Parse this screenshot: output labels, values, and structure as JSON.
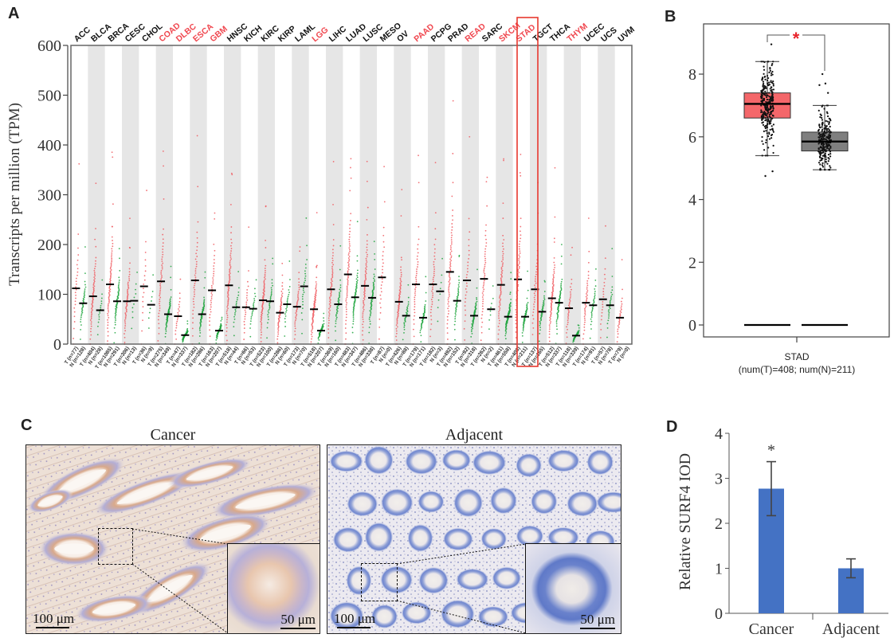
{
  "panels": {
    "A": {
      "letter": "A"
    },
    "B": {
      "letter": "B"
    },
    "C": {
      "letter": "C"
    },
    "D": {
      "letter": "D"
    }
  },
  "chart_data": [
    {
      "id": "A",
      "type": "scatter",
      "title": "",
      "ylabel": "Transcripts per million (TPM)",
      "xlabel": "",
      "ylim": [
        0,
        600
      ],
      "yticks": [
        0,
        100,
        200,
        300,
        400,
        500,
        600
      ],
      "tumor_color": "#f0595f",
      "normal_color": "#1aa33a",
      "highlight_color": "#e8382f",
      "highlighted_type": "STAD",
      "cancer_types": [
        {
          "name": "ACC",
          "significant": false,
          "T": {
            "n": 77,
            "median": 112
          },
          "N": {
            "n": 128,
            "median": 82
          }
        },
        {
          "name": "BLCA",
          "significant": false,
          "T": {
            "n": 404,
            "median": 96
          },
          "N": {
            "n": 28,
            "median": 68
          }
        },
        {
          "name": "BRCA",
          "significant": false,
          "T": {
            "n": 1085,
            "median": 120
          },
          "N": {
            "n": 291,
            "median": 86
          }
        },
        {
          "name": "CESC",
          "significant": false,
          "T": {
            "n": 306,
            "median": 86
          },
          "N": {
            "n": 13,
            "median": 87
          }
        },
        {
          "name": "CHOL",
          "significant": false,
          "T": {
            "n": 36,
            "median": 116
          },
          "N": {
            "n": 9,
            "median": 79
          }
        },
        {
          "name": "COAD",
          "significant": true,
          "T": {
            "n": 275,
            "median": 126
          },
          "N": {
            "n": 349,
            "median": 60
          }
        },
        {
          "name": "DLBC",
          "significant": true,
          "T": {
            "n": 47,
            "median": 56
          },
          "N": {
            "n": 337,
            "median": 18
          }
        },
        {
          "name": "ESCA",
          "significant": true,
          "T": {
            "n": 182,
            "median": 128
          },
          "N": {
            "n": 286,
            "median": 60
          }
        },
        {
          "name": "GBM",
          "significant": true,
          "T": {
            "n": 163,
            "median": 108
          },
          "N": {
            "n": 207,
            "median": 27
          }
        },
        {
          "name": "HNSC",
          "significant": false,
          "T": {
            "n": 518,
            "median": 118
          },
          "N": {
            "n": 44,
            "median": 74
          }
        },
        {
          "name": "KICH",
          "significant": false,
          "T": {
            "n": 66,
            "median": 74
          },
          "N": {
            "n": 53,
            "median": 71
          }
        },
        {
          "name": "KIRC",
          "significant": false,
          "T": {
            "n": 523,
            "median": 88
          },
          "N": {
            "n": 100,
            "median": 86
          }
        },
        {
          "name": "KIRP",
          "significant": false,
          "T": {
            "n": 286,
            "median": 63
          },
          "N": {
            "n": 60,
            "median": 80
          }
        },
        {
          "name": "LAML",
          "significant": false,
          "T": {
            "n": 173,
            "median": 75
          },
          "N": {
            "n": 70,
            "median": 116
          }
        },
        {
          "name": "LGG",
          "significant": true,
          "T": {
            "n": 518,
            "median": 70
          },
          "N": {
            "n": 207,
            "median": 27
          }
        },
        {
          "name": "LIHC",
          "significant": false,
          "T": {
            "n": 369,
            "median": 110
          },
          "N": {
            "n": 160,
            "median": 80
          }
        },
        {
          "name": "LUAD",
          "significant": false,
          "T": {
            "n": 483,
            "median": 140
          },
          "N": {
            "n": 347,
            "median": 94
          }
        },
        {
          "name": "LUSC",
          "significant": false,
          "T": {
            "n": 486,
            "median": 117
          },
          "N": {
            "n": 338,
            "median": 93
          }
        },
        {
          "name": "MESO",
          "significant": false,
          "T": {
            "n": 87,
            "median": 134
          },
          "N": {
            "n": 0,
            "median": null
          }
        },
        {
          "name": "OV",
          "significant": false,
          "T": {
            "n": 426,
            "median": 85
          },
          "N": {
            "n": 88,
            "median": 57
          }
        },
        {
          "name": "PAAD",
          "significant": true,
          "T": {
            "n": 179,
            "median": 120
          },
          "N": {
            "n": 171,
            "median": 53
          }
        },
        {
          "name": "PCPG",
          "significant": false,
          "T": {
            "n": 182,
            "median": 120
          },
          "N": {
            "n": 3,
            "median": 106
          }
        },
        {
          "name": "PRAD",
          "significant": false,
          "T": {
            "n": 492,
            "median": 145
          },
          "N": {
            "n": 152,
            "median": 87
          }
        },
        {
          "name": "READ",
          "significant": true,
          "T": {
            "n": 92,
            "median": 128
          },
          "N": {
            "n": 318,
            "median": 57
          }
        },
        {
          "name": "SARC",
          "significant": false,
          "T": {
            "n": 262,
            "median": 131
          },
          "N": {
            "n": 2,
            "median": 70
          }
        },
        {
          "name": "SKCM",
          "significant": true,
          "T": {
            "n": 461,
            "median": 119
          },
          "N": {
            "n": 558,
            "median": 55
          }
        },
        {
          "name": "STAD",
          "significant": true,
          "T": {
            "n": 408,
            "median": 130
          },
          "N": {
            "n": 211,
            "median": 55
          }
        },
        {
          "name": "TGCT",
          "significant": false,
          "T": {
            "n": 137,
            "median": 110
          },
          "N": {
            "n": 165,
            "median": 65
          }
        },
        {
          "name": "THCA",
          "significant": false,
          "T": {
            "n": 512,
            "median": 92
          },
          "N": {
            "n": 337,
            "median": 83
          }
        },
        {
          "name": "THYM",
          "significant": true,
          "T": {
            "n": 118,
            "median": 72
          },
          "N": {
            "n": 339,
            "median": 17
          }
        },
        {
          "name": "UCEC",
          "significant": false,
          "T": {
            "n": 174,
            "median": 83
          },
          "N": {
            "n": 91,
            "median": 78
          }
        },
        {
          "name": "UCS",
          "significant": false,
          "T": {
            "n": 57,
            "median": 90
          },
          "N": {
            "n": 78,
            "median": 78
          }
        },
        {
          "name": "UVM",
          "significant": false,
          "T": {
            "n": 79,
            "median": 53
          },
          "N": {
            "n": 0,
            "median": null
          }
        }
      ]
    },
    {
      "id": "B",
      "type": "box",
      "title": "",
      "xlabel": "STAD",
      "xlabel_sub": "(num(T)=408; num(N)=211)",
      "ylabel": "",
      "ylim": [
        0,
        9.5
      ],
      "yticks": [
        0,
        2,
        4,
        6,
        8
      ],
      "significance": "*",
      "significance_color": "#e8232b",
      "groups": [
        {
          "name": "T",
          "color": "#f4676a",
          "q1": 6.6,
          "median": 7.05,
          "q3": 7.4,
          "whisker_low": 5.4,
          "whisker_high": 8.4,
          "n": 408,
          "outliers": [
            8.95,
            4.9,
            4.75
          ]
        },
        {
          "name": "N",
          "color": "#7f7f7f",
          "q1": 5.55,
          "median": 5.85,
          "q3": 6.15,
          "whisker_low": 4.95,
          "whisker_high": 7.0,
          "n": 211,
          "outliers": [
            8.0,
            7.7,
            7.65,
            7.4
          ]
        }
      ],
      "zero_lines": true
    },
    {
      "id": "D",
      "type": "bar",
      "title": "",
      "xlabel": "",
      "ylabel": "Relative SURF4 IOD",
      "categories": [
        "Cancer",
        "Adjacent"
      ],
      "values": [
        2.77,
        1.0
      ],
      "errors": [
        0.6,
        0.21
      ],
      "annotations": [
        "*",
        ""
      ],
      "bar_color": "#4472c4",
      "ylim": [
        0,
        4
      ],
      "yticks": [
        0,
        1,
        2,
        3,
        4
      ]
    }
  ],
  "panelC": {
    "images": [
      {
        "title": "Cancer",
        "scale_main": "100 μm",
        "scale_inset": "50 μm",
        "stain": "brown-positive"
      },
      {
        "title": "Adjacent",
        "scale_main": "100 μm",
        "scale_inset": "50 μm",
        "stain": "blue-negative"
      }
    ]
  }
}
